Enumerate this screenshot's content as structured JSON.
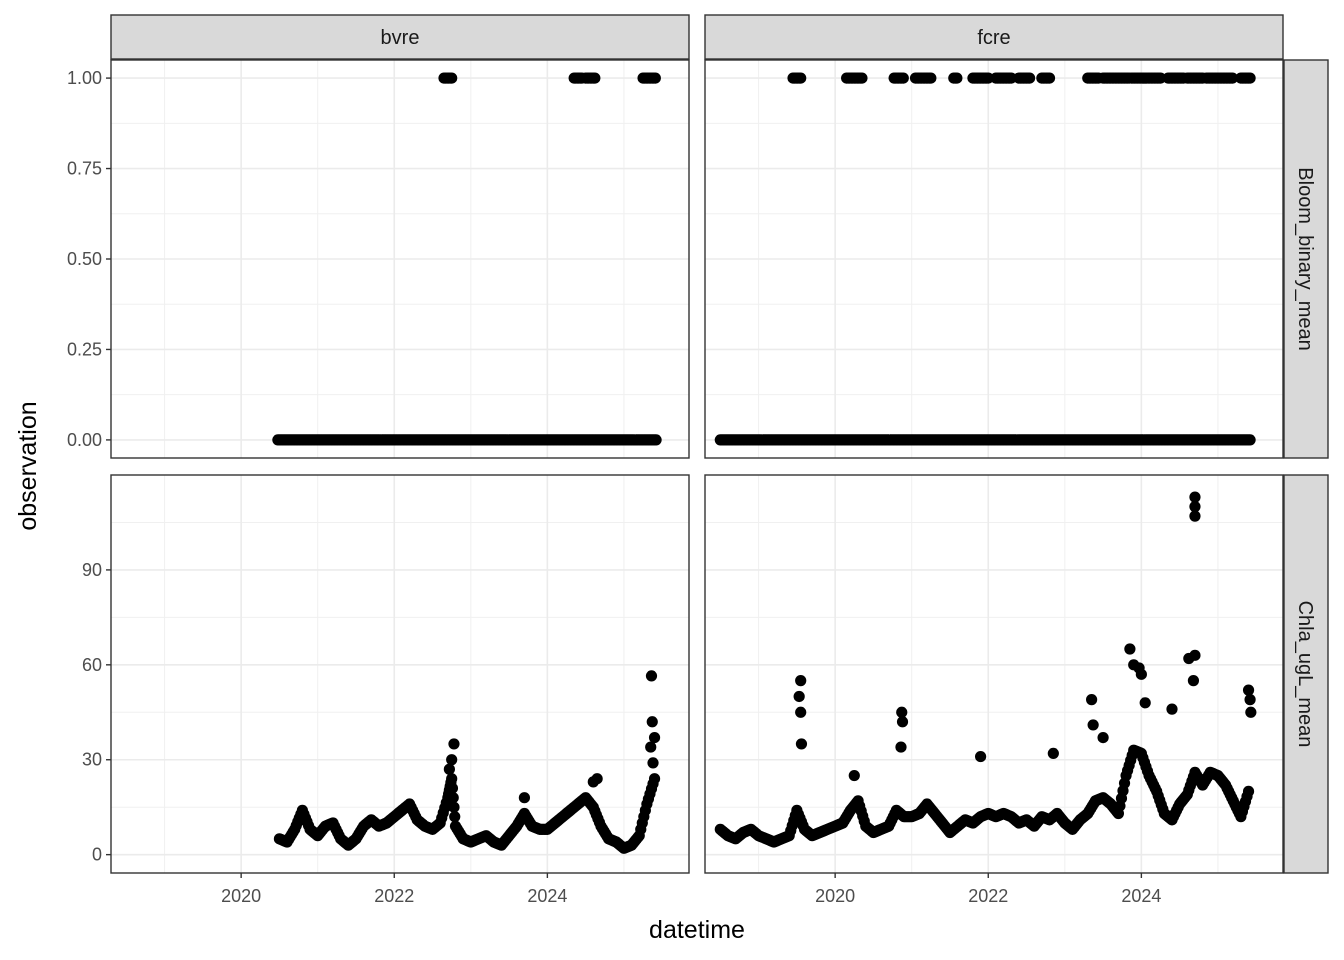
{
  "chart_data": {
    "type": "scatter",
    "facet_columns": [
      "bvre",
      "fcre"
    ],
    "facet_rows": [
      "Bloom_binary_mean",
      "Chla_ugL_mean"
    ],
    "xlabel": "datetime",
    "ylabel": "observation",
    "x_ticks": [
      "2020",
      "2022",
      "2024"
    ],
    "xlim": [
      2018.3,
      2025.85
    ],
    "y_ticks_row1": [
      "0.00",
      "0.25",
      "0.50",
      "0.75",
      "1.00"
    ],
    "y_ticks_row2": [
      "0",
      "30",
      "60",
      "90"
    ],
    "ylim_row1": [
      -0.05,
      1.05
    ],
    "ylim_row2": [
      -5.8,
      120
    ],
    "grid": true,
    "point_color": "#000000",
    "panels": {
      "bvre_Bloom_binary_mean": {
        "zero_range": [
          2020.48,
          2025.42
        ],
        "one_ranges": [
          [
            2022.65,
            2022.75
          ],
          [
            2024.35,
            2024.45
          ],
          [
            2024.5,
            2024.63
          ],
          [
            2025.25,
            2025.42
          ]
        ]
      },
      "fcre_Bloom_binary_mean": {
        "zero_range": [
          2018.5,
          2025.42
        ],
        "one_ranges": [
          [
            2019.45,
            2019.55
          ],
          [
            2020.15,
            2020.35
          ],
          [
            2020.77,
            2020.9
          ],
          [
            2021.05,
            2021.25
          ],
          [
            2021.55,
            2021.6
          ],
          [
            2021.8,
            2022.0
          ],
          [
            2022.1,
            2022.3
          ],
          [
            2022.4,
            2022.55
          ],
          [
            2022.7,
            2022.8
          ],
          [
            2023.3,
            2023.45
          ],
          [
            2023.5,
            2023.85
          ],
          [
            2023.87,
            2024.25
          ],
          [
            2024.35,
            2024.55
          ],
          [
            2024.6,
            2024.8
          ],
          [
            2024.85,
            2025.2
          ],
          [
            2025.3,
            2025.42
          ]
        ]
      },
      "bvre_Chla_ugL_mean": {
        "series": [
          [
            2020.5,
            5
          ],
          [
            2020.6,
            4
          ],
          [
            2020.7,
            8
          ],
          [
            2020.8,
            14
          ],
          [
            2020.9,
            8
          ],
          [
            2021.0,
            6
          ],
          [
            2021.1,
            9
          ],
          [
            2021.2,
            10
          ],
          [
            2021.3,
            5
          ],
          [
            2021.4,
            3
          ],
          [
            2021.5,
            5
          ],
          [
            2021.6,
            9
          ],
          [
            2021.7,
            11
          ],
          [
            2021.8,
            9
          ],
          [
            2021.9,
            10
          ],
          [
            2022.0,
            12
          ],
          [
            2022.1,
            14
          ],
          [
            2022.2,
            16
          ],
          [
            2022.3,
            11
          ],
          [
            2022.4,
            9
          ],
          [
            2022.5,
            8
          ],
          [
            2022.6,
            10
          ],
          [
            2022.7,
            18
          ],
          [
            2022.75,
            24
          ],
          [
            2022.8,
            9
          ],
          [
            2022.9,
            5
          ],
          [
            2023.0,
            4
          ],
          [
            2023.1,
            5
          ],
          [
            2023.2,
            6
          ],
          [
            2023.3,
            4
          ],
          [
            2023.4,
            3
          ],
          [
            2023.5,
            6
          ],
          [
            2023.6,
            9
          ],
          [
            2023.7,
            13
          ],
          [
            2023.8,
            9
          ],
          [
            2023.9,
            8
          ],
          [
            2024.0,
            8
          ],
          [
            2024.1,
            10
          ],
          [
            2024.2,
            12
          ],
          [
            2024.3,
            14
          ],
          [
            2024.4,
            16
          ],
          [
            2024.5,
            18
          ],
          [
            2024.6,
            15
          ],
          [
            2024.7,
            9
          ],
          [
            2024.8,
            5
          ],
          [
            2024.9,
            4
          ],
          [
            2025.0,
            2
          ],
          [
            2025.1,
            3
          ],
          [
            2025.2,
            6
          ],
          [
            2025.3,
            16
          ],
          [
            2025.4,
            24
          ]
        ],
        "spikes": [
          [
            2022.78,
            35
          ],
          [
            2022.75,
            30
          ],
          [
            2022.72,
            27
          ],
          [
            2023.7,
            18
          ],
          [
            2024.6,
            23
          ],
          [
            2024.65,
            24
          ],
          [
            2025.36,
            56.5
          ],
          [
            2025.37,
            42
          ],
          [
            2025.4,
            37
          ],
          [
            2025.35,
            34
          ],
          [
            2025.38,
            29
          ]
        ]
      },
      "fcre_Chla_ugL_mean": {
        "series": [
          [
            2018.5,
            8
          ],
          [
            2018.6,
            6
          ],
          [
            2018.7,
            5
          ],
          [
            2018.8,
            7
          ],
          [
            2018.9,
            8
          ],
          [
            2019.0,
            6
          ],
          [
            2019.1,
            5
          ],
          [
            2019.2,
            4
          ],
          [
            2019.3,
            5
          ],
          [
            2019.4,
            6
          ],
          [
            2019.5,
            14
          ],
          [
            2019.6,
            8
          ],
          [
            2019.7,
            6
          ],
          [
            2019.8,
            7
          ],
          [
            2019.9,
            8
          ],
          [
            2020.0,
            9
          ],
          [
            2020.1,
            10
          ],
          [
            2020.2,
            14
          ],
          [
            2020.3,
            17
          ],
          [
            2020.4,
            9
          ],
          [
            2020.5,
            7
          ],
          [
            2020.6,
            8
          ],
          [
            2020.7,
            9
          ],
          [
            2020.8,
            14
          ],
          [
            2020.9,
            12
          ],
          [
            2021.0,
            12
          ],
          [
            2021.1,
            13
          ],
          [
            2021.2,
            16
          ],
          [
            2021.3,
            13
          ],
          [
            2021.4,
            10
          ],
          [
            2021.5,
            7
          ],
          [
            2021.6,
            9
          ],
          [
            2021.7,
            11
          ],
          [
            2021.8,
            10
          ],
          [
            2021.9,
            12
          ],
          [
            2022.0,
            13
          ],
          [
            2022.1,
            12
          ],
          [
            2022.2,
            13
          ],
          [
            2022.3,
            12
          ],
          [
            2022.4,
            10
          ],
          [
            2022.5,
            11
          ],
          [
            2022.6,
            9
          ],
          [
            2022.7,
            12
          ],
          [
            2022.8,
            11
          ],
          [
            2022.9,
            13
          ],
          [
            2023.0,
            10
          ],
          [
            2023.1,
            8
          ],
          [
            2023.2,
            11
          ],
          [
            2023.3,
            13
          ],
          [
            2023.4,
            17
          ],
          [
            2023.5,
            18
          ],
          [
            2023.6,
            16
          ],
          [
            2023.7,
            13
          ],
          [
            2023.8,
            25
          ],
          [
            2023.9,
            33
          ],
          [
            2024.0,
            32
          ],
          [
            2024.1,
            25
          ],
          [
            2024.2,
            20
          ],
          [
            2024.3,
            13
          ],
          [
            2024.4,
            11
          ],
          [
            2024.5,
            16
          ],
          [
            2024.6,
            19
          ],
          [
            2024.7,
            26
          ],
          [
            2024.8,
            22
          ],
          [
            2024.9,
            26
          ],
          [
            2025.0,
            25
          ],
          [
            2025.1,
            22
          ],
          [
            2025.2,
            17
          ],
          [
            2025.3,
            12
          ],
          [
            2025.4,
            20
          ]
        ],
        "spikes": [
          [
            2019.55,
            55
          ],
          [
            2019.53,
            50
          ],
          [
            2019.55,
            45
          ],
          [
            2019.56,
            35
          ],
          [
            2020.25,
            25
          ],
          [
            2020.87,
            45
          ],
          [
            2020.88,
            42
          ],
          [
            2020.86,
            34
          ],
          [
            2021.9,
            31
          ],
          [
            2022.85,
            32
          ],
          [
            2023.35,
            49
          ],
          [
            2023.37,
            41
          ],
          [
            2023.5,
            37
          ],
          [
            2023.85,
            65
          ],
          [
            2023.9,
            60
          ],
          [
            2023.97,
            59
          ],
          [
            2024.0,
            57
          ],
          [
            2024.05,
            48
          ],
          [
            2024.4,
            46
          ],
          [
            2024.62,
            62
          ],
          [
            2024.7,
            63
          ],
          [
            2024.68,
            55
          ],
          [
            2024.7,
            113
          ],
          [
            2024.7,
            110
          ],
          [
            2024.7,
            107
          ],
          [
            2025.4,
            52
          ],
          [
            2025.42,
            49
          ],
          [
            2025.43,
            45
          ]
        ]
      }
    }
  }
}
